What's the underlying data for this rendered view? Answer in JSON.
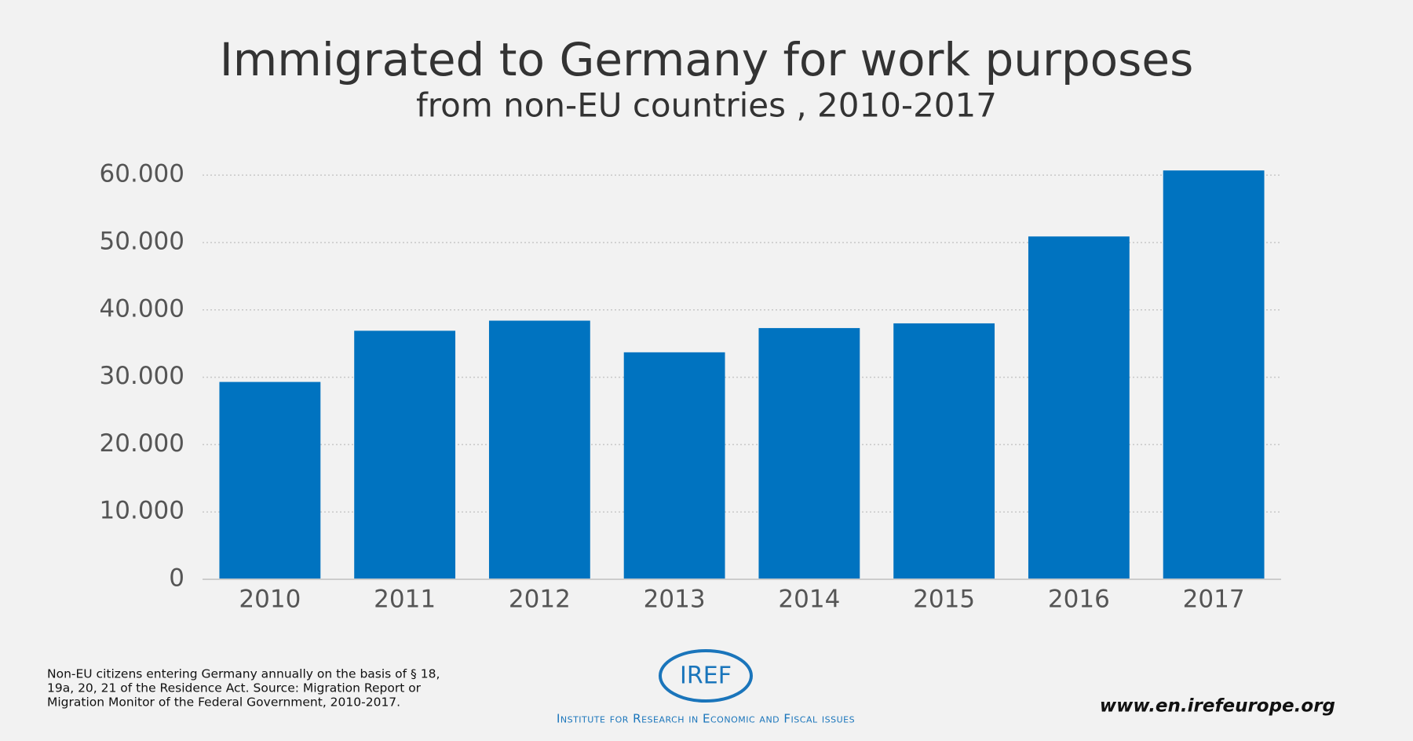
{
  "chart_data": {
    "type": "bar",
    "title": "Immigrated to Germany for work purposes",
    "subtitle": "from non-EU countries , 2010-2017",
    "categories": [
      "2010",
      "2011",
      "2012",
      "2013",
      "2014",
      "2015",
      "2016",
      "2017"
    ],
    "values": [
      29300,
      36900,
      38400,
      33700,
      37300,
      38000,
      50900,
      60700
    ],
    "color": "#0073c0",
    "ylim": [
      0,
      62000
    ],
    "yticks": [
      0,
      {
        "value": 10000,
        "label": "10.000"
      },
      {
        "value": 20000,
        "label": "20.000"
      },
      {
        "value": 30000,
        "label": "30.000"
      },
      {
        "value": 40000,
        "label": "40.000"
      },
      {
        "value": 50000,
        "label": "50.000"
      },
      {
        "value": 60000,
        "label": "60.000"
      }
    ],
    "grid": true
  },
  "footer": {
    "note": [
      "Non-EU citizens entering Germany annually on the basis of § 18,",
      "19a, 20, 21 of the Residence Act. Source: Migration Report or",
      "Migration Monitor of the Federal Government, 2010-2017."
    ],
    "logo": "IREF",
    "institute": "Institute for Research in Economic and Fiscal issues",
    "url": "www.en.irefeurope.org"
  }
}
